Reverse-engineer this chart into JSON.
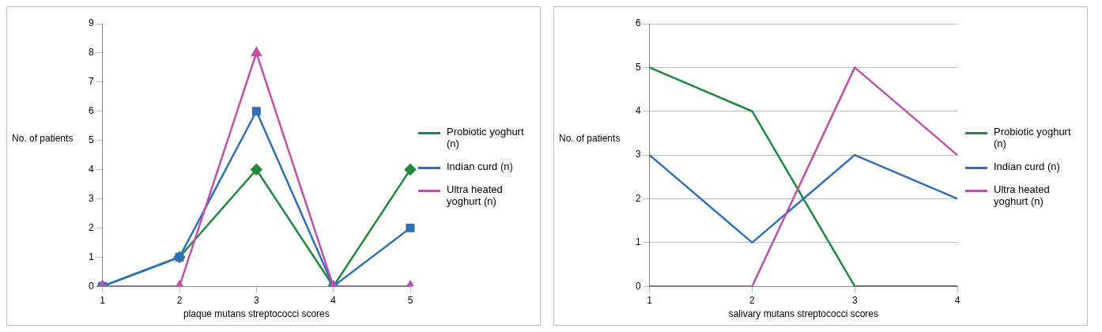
{
  "chart_data": [
    {
      "type": "line",
      "categories": [
        "1",
        "2",
        "3",
        "4",
        "5"
      ],
      "xlabel": "plaque mutans streptococci scores",
      "ylabel": "No. of patients",
      "ylim": [
        0,
        9
      ],
      "yticks": [
        0,
        1,
        2,
        3,
        4,
        5,
        6,
        7,
        8,
        9
      ],
      "grid": false,
      "legend": "right",
      "series": [
        {
          "name": "Probiotic yoghurt (n)",
          "color": "#1f8a3c",
          "marker": "diamond",
          "values": [
            0,
            1,
            4,
            0,
            4
          ]
        },
        {
          "name": "Indian curd (n)",
          "color": "#2e6fba",
          "marker": "square",
          "values": [
            0,
            1,
            6,
            0,
            2
          ]
        },
        {
          "name": "Ultra heated yoghurt (n)",
          "color": "#c04fa8",
          "marker": "triangle",
          "values": [
            0,
            0,
            8,
            0,
            0
          ]
        }
      ]
    },
    {
      "type": "line",
      "categories": [
        "1",
        "2",
        "3",
        "4"
      ],
      "xlabel": "salivary mutans streptococci scores",
      "ylabel": "No. of patients",
      "ylim": [
        0,
        6
      ],
      "yticks": [
        0,
        1,
        2,
        3,
        4,
        5,
        6
      ],
      "grid": "y",
      "legend": "right",
      "marker": "none",
      "series": [
        {
          "name": "Probiotic yoghurt (n)",
          "color": "#1f8a3c",
          "values": [
            5,
            4,
            0,
            0
          ]
        },
        {
          "name": "Indian curd (n)",
          "color": "#2e6fba",
          "values": [
            3,
            1,
            3,
            2
          ]
        },
        {
          "name": "Ultra heated yoghurt (n)",
          "color": "#c04fa8",
          "values": [
            0,
            0,
            5,
            3
          ]
        }
      ]
    }
  ]
}
